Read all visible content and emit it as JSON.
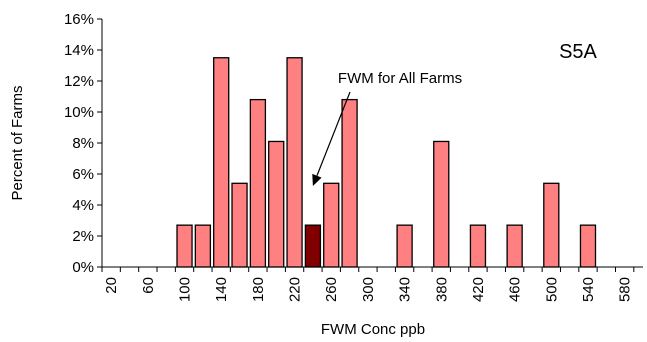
{
  "chart_data": {
    "type": "bar",
    "title": "",
    "panel_label": "S5A",
    "xlabel": "FWM Conc ppb",
    "ylabel": "Percent of Farms",
    "x_tick_labels": [
      "20",
      "60",
      "100",
      "140",
      "180",
      "220",
      "260",
      "300",
      "340",
      "380",
      "420",
      "460",
      "500",
      "540",
      "580"
    ],
    "y_tick_labels": [
      "0%",
      "2%",
      "4%",
      "6%",
      "8%",
      "10%",
      "12%",
      "14%",
      "16%"
    ],
    "ylim": [
      0,
      16
    ],
    "y_unit": "%",
    "grid": false,
    "legend": "none",
    "bin_width": 20,
    "series": [
      {
        "values": [
          {
            "x": 100,
            "y": 2.7
          },
          {
            "x": 120,
            "y": 2.7
          },
          {
            "x": 140,
            "y": 13.5
          },
          {
            "x": 160,
            "y": 5.4
          },
          {
            "x": 180,
            "y": 10.8
          },
          {
            "x": 200,
            "y": 8.1
          },
          {
            "x": 220,
            "y": 13.5
          },
          {
            "x": 240,
            "y": 2.7,
            "highlight": true
          },
          {
            "x": 260,
            "y": 5.4
          },
          {
            "x": 280,
            "y": 10.8
          },
          {
            "x": 340,
            "y": 2.7
          },
          {
            "x": 380,
            "y": 8.1
          },
          {
            "x": 420,
            "y": 2.7
          },
          {
            "x": 460,
            "y": 2.7
          },
          {
            "x": 500,
            "y": 5.4
          },
          {
            "x": 540,
            "y": 2.7
          }
        ]
      }
    ],
    "annotation": {
      "text": "FWM for All Farms",
      "points_to_x": 240
    },
    "colors": {
      "bar_fill": "#ff8080",
      "highlight_fill": "#800000",
      "bar_stroke": "#000000"
    }
  }
}
